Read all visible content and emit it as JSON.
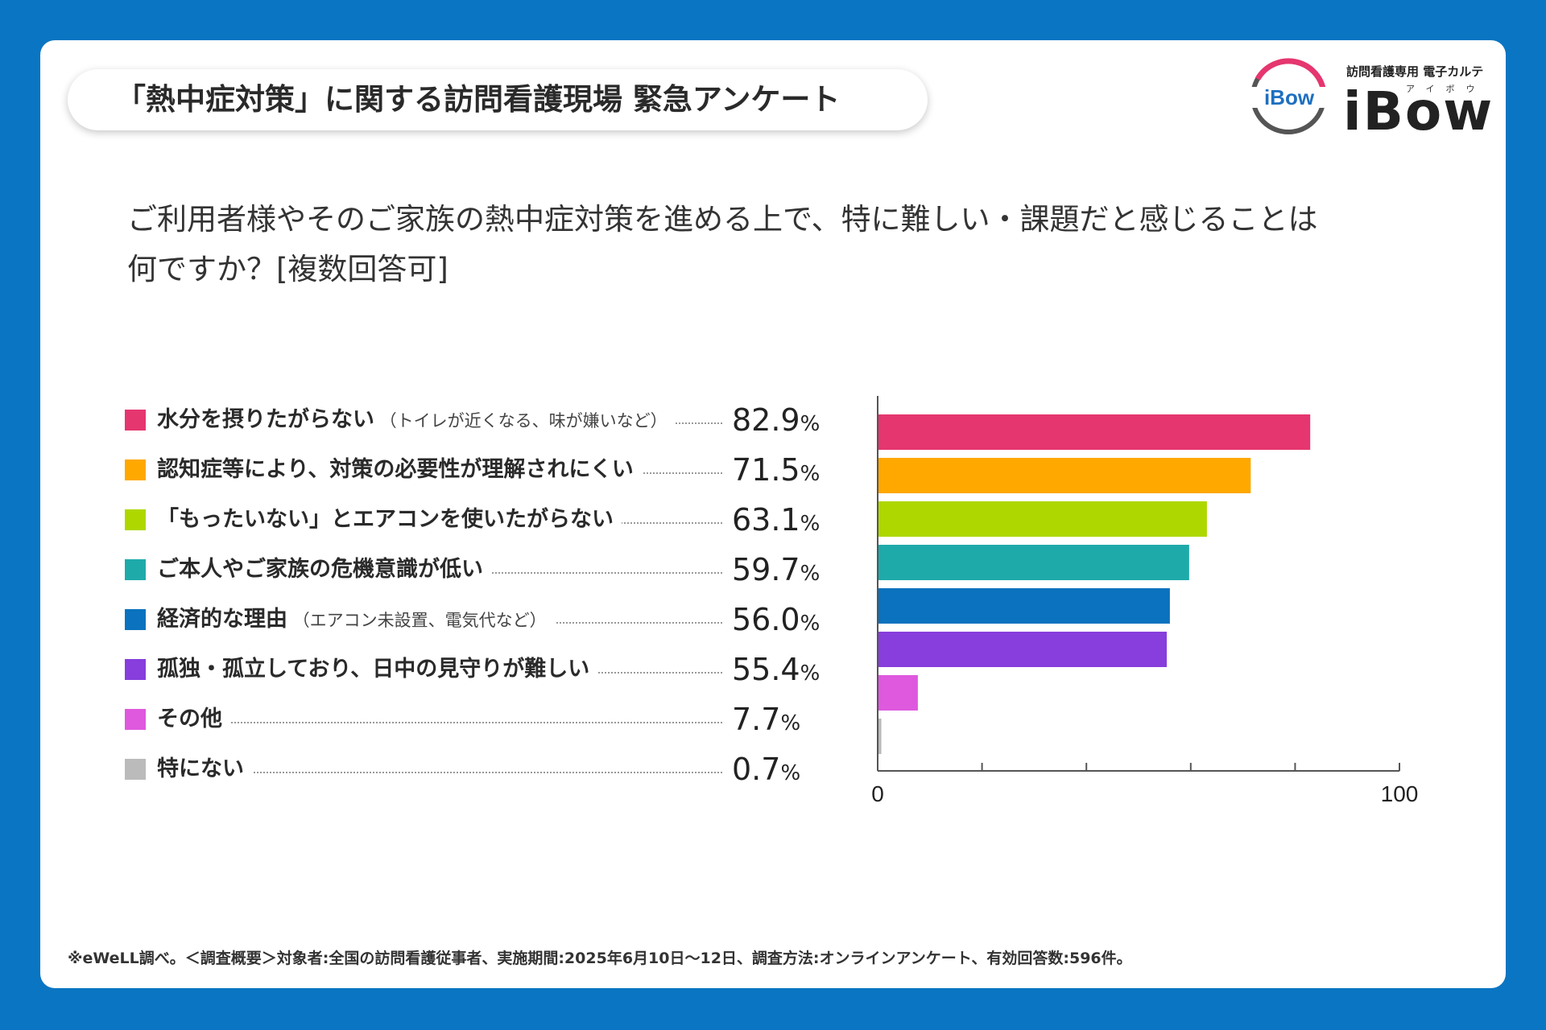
{
  "header": {
    "title": "「熱中症対策」に関する訪問看護現場 緊急アンケート"
  },
  "logo": {
    "badge": "iBow",
    "tagline": "訪問看護専用 電子カルテ",
    "kana": "アイボウ",
    "name": "iBow"
  },
  "question": {
    "line1": "ご利用者様やそのご家族の熱中症対策を進める上で、特に難しい・課題だと感じることは",
    "line2": "何ですか？[複数回答可]"
  },
  "pct_unit": "%",
  "colors": {
    "background": "#0A75C2",
    "card": "#FFFFFF"
  },
  "chart_data": {
    "type": "bar",
    "orientation": "horizontal",
    "categories": [
      "水分を摂りたがらない（トイレが近くなる、味が嫌いなど）",
      "認知症等により、対策の必要性が理解されにくい",
      "「もったいない」とエアコンを使いたがらない",
      "ご本人やご家族の危機意識が低い",
      "経済的な理由（エアコン未設置、電気代など）",
      "孤独・孤立しており、日中の見守りが難しい",
      "その他",
      "特にない"
    ],
    "items": [
      {
        "label": "水分を摂りたがらない",
        "note": "（トイレが近くなる、味が嫌いなど）",
        "value": 82.9,
        "value_text": "82.9",
        "color": "#E5366F"
      },
      {
        "label": "認知症等により、対策の必要性が理解されにくい",
        "note": "",
        "value": 71.5,
        "value_text": "71.5",
        "color": "#FFA800"
      },
      {
        "label": "「もったいない」とエアコンを使いたがらない",
        "note": "",
        "value": 63.1,
        "value_text": "63.1",
        "color": "#AED700"
      },
      {
        "label": "ご本人やご家族の危機意識が低い",
        "note": "",
        "value": 59.7,
        "value_text": "59.7",
        "color": "#1FAAAA"
      },
      {
        "label": "経済的な理由",
        "note": "（エアコン未設置、電気代など）",
        "value": 56.0,
        "value_text": "56.0",
        "color": "#0A72BE"
      },
      {
        "label": "孤独・孤立しており、日中の見守りが難しい",
        "note": "",
        "value": 55.4,
        "value_text": "55.4",
        "color": "#873EDC"
      },
      {
        "label": "その他",
        "note": "",
        "value": 7.7,
        "value_text": "7.7",
        "color": "#DE59DE"
      },
      {
        "label": "特にない",
        "note": "",
        "value": 0.7,
        "value_text": "0.7",
        "color": "#BBBBBB"
      }
    ],
    "values": [
      82.9,
      71.5,
      63.1,
      59.7,
      56.0,
      55.4,
      7.7,
      0.7
    ],
    "xlim": [
      0,
      100
    ],
    "tick_labels": [
      "0",
      "100"
    ],
    "unit": "%",
    "xlabel": "",
    "ylabel": ""
  },
  "footnote": "※eWeLL調べ。＜調査概要＞対象者:全国の訪問看護従事者、実施期間:2025年6月10日〜12日、調査方法:オンラインアンケート、有効回答数:596件。"
}
